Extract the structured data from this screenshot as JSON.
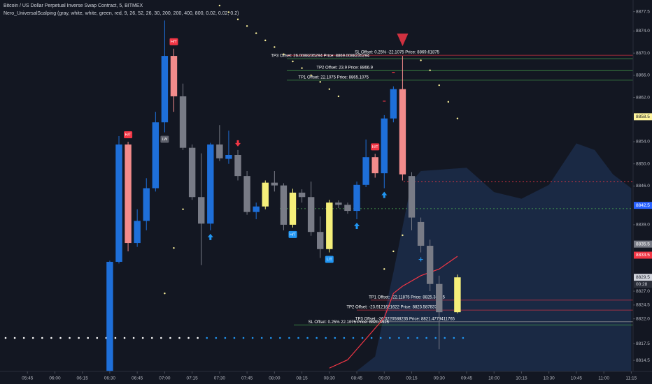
{
  "chart_data": {
    "type": "candlestick",
    "title": "Bitcoin / US Dollar Perpetual Inverse Swap Contract, 5, BITMEX",
    "subtitle": "Nero_UniversalScalping (gray, white, white, green, red, 9, 26, 52, 26, 30, 200, 200, 400, 800, 0.02, 0.02, 0.2)",
    "x": [
      "06:30",
      "06:35",
      "06:40",
      "06:45",
      "06:50",
      "06:55",
      "07:00",
      "07:05",
      "07:10",
      "07:15",
      "07:20",
      "07:25",
      "07:30",
      "07:35",
      "07:40",
      "07:45",
      "07:50",
      "07:55",
      "08:00",
      "08:05",
      "08:10",
      "08:15",
      "08:20",
      "08:25",
      "08:30",
      "08:35",
      "08:40",
      "08:45",
      "08:50",
      "08:55",
      "09:00",
      "09:05",
      "09:10",
      "09:15",
      "09:20",
      "09:25",
      "09:30",
      "09:40"
    ],
    "open": [
      8812.6,
      8832.3,
      8853.5,
      8835.7,
      8839.7,
      8845.6,
      8857.5,
      8869.5,
      8862.2,
      8852.9,
      8844.0,
      8839.2,
      8853.5,
      8850.9,
      8851.6,
      8847.8,
      8841.3,
      8842.3,
      8846.6,
      8846.1,
      8839.0,
      8844.8,
      8844.0,
      8837.7,
      8834.6,
      8843.0,
      8842.6,
      8841.5,
      8846.2,
      8851.2,
      8848.3,
      8858.2,
      8863.5,
      8847.8,
      8839.5,
      8835.2,
      8828.3,
      8823.2
    ],
    "high": [
      8832.5,
      8855.0,
      8854.0,
      8841.8,
      8847.4,
      8859.4,
      8875.9,
      8870.8,
      8864.5,
      8853.5,
      8851.9,
      8853.8,
      8857.0,
      8856.0,
      8852.5,
      8848.7,
      8843.0,
      8847.0,
      8848.7,
      8846.5,
      8845.5,
      8845.4,
      8846.8,
      8840.5,
      8843.5,
      8843.4,
      8843.0,
      8846.8,
      8854.4,
      8851.8,
      8858.8,
      8864.0,
      8869.5,
      8848.5,
      8840.3,
      8836.3,
      8829.8,
      8830.0
    ],
    "low": [
      8812.5,
      8832.0,
      8834.2,
      8835.0,
      8838.0,
      8845.0,
      8855.7,
      8859.4,
      8852.5,
      8843.5,
      8831.7,
      8838.0,
      8850.5,
      8850.0,
      8847.0,
      8840.8,
      8840.0,
      8841.8,
      8845.0,
      8838.0,
      8838.5,
      8843.0,
      8837.0,
      8833.0,
      8834.0,
      8842.0,
      8841.0,
      8840.0,
      8845.8,
      8847.5,
      8845.6,
      8857.5,
      8847.0,
      8838.0,
      8834.0,
      8827.0,
      8816.5,
      8823.0
    ],
    "close": [
      8832.3,
      8853.5,
      8835.7,
      8839.7,
      8845.6,
      8857.5,
      8869.5,
      8862.2,
      8852.9,
      8844.0,
      8839.2,
      8853.5,
      8851.0,
      8851.6,
      8847.8,
      8841.3,
      8842.3,
      8846.6,
      8846.1,
      8839.0,
      8844.8,
      8844.0,
      8837.7,
      8834.6,
      8843.0,
      8842.6,
      8841.5,
      8846.2,
      8851.2,
      8848.3,
      8858.2,
      8863.5,
      8848.1,
      8840.3,
      8835.2,
      8828.3,
      8823.2,
      8829.5
    ],
    "colors": [
      "#1e6fd9",
      "#1e6fd9",
      "#f28b8b",
      "#1e6fd9",
      "#1e6fd9",
      "#1e6fd9",
      "#1e6fd9",
      "#f28b8b",
      "#787b86",
      "#787b86",
      "#787b86",
      "#1e6fd9",
      "#787b86",
      "#1e6fd9",
      "#787b86",
      "#787b86",
      "#1e6fd9",
      "#f5ef7a",
      "#787b86",
      "#787b86",
      "#f5ef7a",
      "#787b86",
      "#787b86",
      "#787b86",
      "#f5ef7a",
      "#787b86",
      "#787b86",
      "#1e6fd9",
      "#1e6fd9",
      "#f28b8b",
      "#1e6fd9",
      "#1e6fd9",
      "#f28b8b",
      "#787b86",
      "#787b86",
      "#787b86",
      "#787b86",
      "#f5ef7a"
    ],
    "xlim": [
      "05:30",
      "11:16"
    ],
    "xticks": [
      "05:45",
      "06:00",
      "06:15",
      "06:30",
      "06:45",
      "07:00",
      "07:15",
      "07:30",
      "07:45",
      "08:00",
      "08:15",
      "08:30",
      "08:45",
      "09:00",
      "09:15",
      "09:30",
      "09:45",
      "10:00",
      "10:15",
      "10:30",
      "10:45",
      "11:00",
      "11:15"
    ],
    "ylim": [
      8812.5,
      8879.6
    ],
    "yticks": [
      8877.5,
      {
        "value": 8874,
        "label": "8874.0"
      },
      {
        "value": 8870,
        "label": "8870.0"
      },
      {
        "value": 8866,
        "label": "8866.0"
      },
      {
        "value": 8862,
        "label": "8862.0"
      },
      {
        "value": 8854,
        "label": "8854.0"
      },
      {
        "value": 8850,
        "label": "8850.0"
      },
      {
        "value": 8846,
        "label": "8846.0"
      },
      {
        "value": 8839,
        "label": "8839.0"
      },
      {
        "value": 8827,
        "label": "8827.0"
      },
      8824.5,
      {
        "value": 8822,
        "label": "8822.0"
      },
      8817.5,
      8814.5
    ],
    "price_tags": [
      {
        "value": 8858.5,
        "color": "#fff59d",
        "text_color": "#131722"
      },
      {
        "value": 8842.5,
        "color": "#2962ff",
        "text_color": "#ffffff"
      },
      {
        "value": 8835.5,
        "color": "#787b86",
        "text_color": "#ffffff"
      },
      {
        "value": 8833.5,
        "color": "#f23645",
        "text_color": "#ffffff"
      },
      {
        "value": 8829.5,
        "color": "#d1d4dc",
        "text_color": "#131722"
      }
    ],
    "countdown": "00:28",
    "sar": {
      "color": "#fff59d",
      "x": [
        "07:00",
        "07:05",
        "07:10",
        "07:30",
        "07:35",
        "07:40",
        "07:45",
        "07:50",
        "07:55",
        "08:00",
        "08:05",
        "08:10",
        "08:15",
        "08:20",
        "08:25",
        "08:30",
        "08:35",
        "09:00",
        "09:05",
        "09:10",
        "09:20",
        "09:25",
        "09:30",
        "09:35",
        "09:40"
      ],
      "values": [
        8826.6,
        8834.8,
        8841.8,
        8878.6,
        8877.4,
        8876.1,
        8874.9,
        8873.6,
        8872.3,
        8871.1,
        8869.8,
        8868.5,
        8867.3,
        8866.0,
        8864.8,
        8863.5,
        8862.2,
        8831.0,
        8834.2,
        8837.1,
        8868.7,
        8866.9,
        8864.2,
        8861.2,
        8858.2
      ]
    },
    "ma": {
      "color": "#f23645",
      "x": [
        "08:30",
        "08:40",
        "08:50",
        "09:00",
        "09:05",
        "09:10",
        "09:20",
        "09:30",
        "09:40"
      ],
      "values": [
        8813.1,
        8814.6,
        8818.4,
        8822.2,
        8826.6,
        8827.9,
        8829.8,
        8831.0,
        8833.3
      ]
    },
    "cloud": {
      "color": "#1c2d4a",
      "x": [
        "08:45",
        "08:55",
        "09:05",
        "09:15",
        "09:20",
        "09:45",
        "10:00",
        "10:15",
        "10:30",
        "10:45",
        "10:55",
        "11:05",
        "11:15"
      ],
      "upper": [
        8812.6,
        8815.2,
        8830.4,
        8846.8,
        8848.7,
        8849.3,
        8844.9,
        8843.7,
        8846.2,
        8853.7,
        8852.5,
        8848.1,
        8845.6
      ]
    },
    "levels": [
      {
        "label": "SL Offset: 0.25% -22.1075 Price: 8869.61875",
        "value": 8869.61875,
        "color": "#f23645"
      },
      {
        "label": "TP3 Offset: 26.0088235294 Price: 8869.0088235294",
        "value": 8869.0088235294,
        "color": "#4caf50"
      },
      {
        "label": "TP2 Offset: 23.9 Price: 8866.9",
        "value": 8866.9,
        "color": "#4caf50"
      },
      {
        "label": "TP1 Offset: 22.1075 Price: 8865.1075",
        "value": 8865.1075,
        "color": "#4caf50"
      },
      {
        "label": "TP1 Offset: -22.11875 Price: 8825.38125",
        "value": 8825.38125,
        "color": "#f23645"
      },
      {
        "label": "TP2 Offset: -23.9121621622 Price: 8823.5878378",
        "value": 8823.5878378,
        "color": "#f23645"
      },
      {
        "label": "TP3 Offset: -26.0220588235 Price: 8821.4779411765",
        "value": 8821.4779411765,
        "color": "#9e9e9e"
      },
      {
        "label": "SL Offset: 0.25% 22.1075 Price: 8820.8925",
        "value": 8820.8925,
        "color": "#4caf50"
      }
    ],
    "dashed_levels": [
      {
        "value": 8846.8,
        "color": "#f23645"
      },
      {
        "value": 8841.9,
        "color": "#4caf50"
      }
    ],
    "markers": [
      {
        "x": "07:05",
        "label": "H/T",
        "color": "#f23645",
        "position": "above"
      },
      {
        "x": "06:40",
        "label": "H/T",
        "color": "#f23645",
        "position": "above"
      },
      {
        "x": "07:00",
        "label": "LW",
        "color": "#5d606b",
        "position": "below"
      },
      {
        "x": "07:40",
        "shape": "arrow-down",
        "color": "#f23645",
        "position": "above"
      },
      {
        "x": "07:25",
        "shape": "arrow-up",
        "color": "#2196f3",
        "position": "below"
      },
      {
        "x": "08:10",
        "label": "H/T",
        "color": "#2196f3",
        "position": "below"
      },
      {
        "x": "08:30",
        "label": "L/T",
        "color": "#2196f3",
        "position": "below"
      },
      {
        "x": "08:45",
        "shape": "arrow-up",
        "color": "#2196f3",
        "position": "below"
      },
      {
        "x": "08:55",
        "label": "H/T",
        "color": "#f23645",
        "position": "above"
      },
      {
        "x": "09:00",
        "shape": "arrow-up",
        "color": "#2196f3",
        "position": "below"
      },
      {
        "x": "09:00",
        "shape": "dash",
        "color": "#f23645",
        "position": "above"
      },
      {
        "x": "09:05",
        "shape": "dash",
        "color": "#f23645",
        "position": "above"
      },
      {
        "x": "09:10",
        "shape": "triangle-down",
        "color": "#f23645",
        "position": "above"
      },
      {
        "x": "09:20",
        "shape": "plus",
        "color": "#2196f3",
        "position": "below"
      }
    ]
  }
}
